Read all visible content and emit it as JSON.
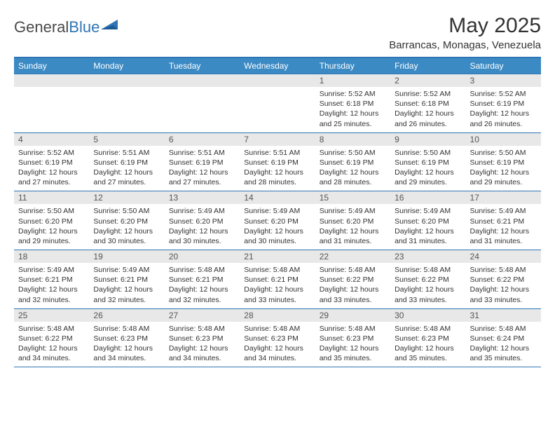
{
  "logo": {
    "textGray": "General",
    "textBlue": "Blue"
  },
  "header": {
    "monthTitle": "May 2025",
    "location": "Barrancas, Monagas, Venezuela"
  },
  "colors": {
    "headerBlue": "#3b8ac4",
    "ruleBlue": "#2f75b5",
    "dayNumBg": "#e8e8e8",
    "textDark": "#333333"
  },
  "dayNames": [
    "Sunday",
    "Monday",
    "Tuesday",
    "Wednesday",
    "Thursday",
    "Friday",
    "Saturday"
  ],
  "weeks": [
    [
      {
        "n": "",
        "lines": []
      },
      {
        "n": "",
        "lines": []
      },
      {
        "n": "",
        "lines": []
      },
      {
        "n": "",
        "lines": []
      },
      {
        "n": "1",
        "lines": [
          "Sunrise: 5:52 AM",
          "Sunset: 6:18 PM",
          "Daylight: 12 hours and 25 minutes."
        ]
      },
      {
        "n": "2",
        "lines": [
          "Sunrise: 5:52 AM",
          "Sunset: 6:18 PM",
          "Daylight: 12 hours and 26 minutes."
        ]
      },
      {
        "n": "3",
        "lines": [
          "Sunrise: 5:52 AM",
          "Sunset: 6:19 PM",
          "Daylight: 12 hours and 26 minutes."
        ]
      }
    ],
    [
      {
        "n": "4",
        "lines": [
          "Sunrise: 5:52 AM",
          "Sunset: 6:19 PM",
          "Daylight: 12 hours and 27 minutes."
        ]
      },
      {
        "n": "5",
        "lines": [
          "Sunrise: 5:51 AM",
          "Sunset: 6:19 PM",
          "Daylight: 12 hours and 27 minutes."
        ]
      },
      {
        "n": "6",
        "lines": [
          "Sunrise: 5:51 AM",
          "Sunset: 6:19 PM",
          "Daylight: 12 hours and 27 minutes."
        ]
      },
      {
        "n": "7",
        "lines": [
          "Sunrise: 5:51 AM",
          "Sunset: 6:19 PM",
          "Daylight: 12 hours and 28 minutes."
        ]
      },
      {
        "n": "8",
        "lines": [
          "Sunrise: 5:50 AM",
          "Sunset: 6:19 PM",
          "Daylight: 12 hours and 28 minutes."
        ]
      },
      {
        "n": "9",
        "lines": [
          "Sunrise: 5:50 AM",
          "Sunset: 6:19 PM",
          "Daylight: 12 hours and 29 minutes."
        ]
      },
      {
        "n": "10",
        "lines": [
          "Sunrise: 5:50 AM",
          "Sunset: 6:19 PM",
          "Daylight: 12 hours and 29 minutes."
        ]
      }
    ],
    [
      {
        "n": "11",
        "lines": [
          "Sunrise: 5:50 AM",
          "Sunset: 6:20 PM",
          "Daylight: 12 hours and 29 minutes."
        ]
      },
      {
        "n": "12",
        "lines": [
          "Sunrise: 5:50 AM",
          "Sunset: 6:20 PM",
          "Daylight: 12 hours and 30 minutes."
        ]
      },
      {
        "n": "13",
        "lines": [
          "Sunrise: 5:49 AM",
          "Sunset: 6:20 PM",
          "Daylight: 12 hours and 30 minutes."
        ]
      },
      {
        "n": "14",
        "lines": [
          "Sunrise: 5:49 AM",
          "Sunset: 6:20 PM",
          "Daylight: 12 hours and 30 minutes."
        ]
      },
      {
        "n": "15",
        "lines": [
          "Sunrise: 5:49 AM",
          "Sunset: 6:20 PM",
          "Daylight: 12 hours and 31 minutes."
        ]
      },
      {
        "n": "16",
        "lines": [
          "Sunrise: 5:49 AM",
          "Sunset: 6:20 PM",
          "Daylight: 12 hours and 31 minutes."
        ]
      },
      {
        "n": "17",
        "lines": [
          "Sunrise: 5:49 AM",
          "Sunset: 6:21 PM",
          "Daylight: 12 hours and 31 minutes."
        ]
      }
    ],
    [
      {
        "n": "18",
        "lines": [
          "Sunrise: 5:49 AM",
          "Sunset: 6:21 PM",
          "Daylight: 12 hours and 32 minutes."
        ]
      },
      {
        "n": "19",
        "lines": [
          "Sunrise: 5:49 AM",
          "Sunset: 6:21 PM",
          "Daylight: 12 hours and 32 minutes."
        ]
      },
      {
        "n": "20",
        "lines": [
          "Sunrise: 5:48 AM",
          "Sunset: 6:21 PM",
          "Daylight: 12 hours and 32 minutes."
        ]
      },
      {
        "n": "21",
        "lines": [
          "Sunrise: 5:48 AM",
          "Sunset: 6:21 PM",
          "Daylight: 12 hours and 33 minutes."
        ]
      },
      {
        "n": "22",
        "lines": [
          "Sunrise: 5:48 AM",
          "Sunset: 6:22 PM",
          "Daylight: 12 hours and 33 minutes."
        ]
      },
      {
        "n": "23",
        "lines": [
          "Sunrise: 5:48 AM",
          "Sunset: 6:22 PM",
          "Daylight: 12 hours and 33 minutes."
        ]
      },
      {
        "n": "24",
        "lines": [
          "Sunrise: 5:48 AM",
          "Sunset: 6:22 PM",
          "Daylight: 12 hours and 33 minutes."
        ]
      }
    ],
    [
      {
        "n": "25",
        "lines": [
          "Sunrise: 5:48 AM",
          "Sunset: 6:22 PM",
          "Daylight: 12 hours and 34 minutes."
        ]
      },
      {
        "n": "26",
        "lines": [
          "Sunrise: 5:48 AM",
          "Sunset: 6:23 PM",
          "Daylight: 12 hours and 34 minutes."
        ]
      },
      {
        "n": "27",
        "lines": [
          "Sunrise: 5:48 AM",
          "Sunset: 6:23 PM",
          "Daylight: 12 hours and 34 minutes."
        ]
      },
      {
        "n": "28",
        "lines": [
          "Sunrise: 5:48 AM",
          "Sunset: 6:23 PM",
          "Daylight: 12 hours and 34 minutes."
        ]
      },
      {
        "n": "29",
        "lines": [
          "Sunrise: 5:48 AM",
          "Sunset: 6:23 PM",
          "Daylight: 12 hours and 35 minutes."
        ]
      },
      {
        "n": "30",
        "lines": [
          "Sunrise: 5:48 AM",
          "Sunset: 6:23 PM",
          "Daylight: 12 hours and 35 minutes."
        ]
      },
      {
        "n": "31",
        "lines": [
          "Sunrise: 5:48 AM",
          "Sunset: 6:24 PM",
          "Daylight: 12 hours and 35 minutes."
        ]
      }
    ]
  ]
}
